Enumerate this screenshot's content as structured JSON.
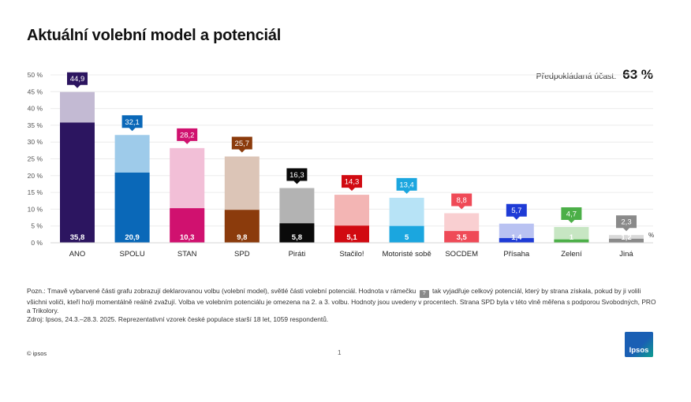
{
  "title": "Aktuální volební model a potenciál",
  "turnout": {
    "label": "Předpokládaná účast:",
    "value": "63 %"
  },
  "chart_data": {
    "type": "bar",
    "title": "Aktuální volební model a potenciál",
    "categories": [
      "ANO",
      "SPOLU",
      "STAN",
      "SPD",
      "Piráti",
      "Stačilo!",
      "Motoristé sobě",
      "SOCDEM",
      "Přísaha",
      "Zelení",
      "Jiná"
    ],
    "series": [
      {
        "values": [
          35.8,
          20.9,
          10.3,
          9.8,
          5.8,
          5.1,
          5,
          3.5,
          1.4,
          1,
          1.2
        ]
      },
      {
        "values": [
          44.9,
          32.1,
          28.2,
          25.7,
          16.3,
          14.3,
          13.4,
          8.8,
          5.7,
          4.7,
          2.3
        ]
      }
    ],
    "value_labels": {
      "model": [
        "35,8",
        "20,9",
        "10,3",
        "9,8",
        "5,8",
        "5,1",
        "5",
        "3,5",
        "1,4",
        "1",
        "1,2"
      ],
      "potential": [
        "44,9",
        "32,1",
        "28,2",
        "25,7",
        "16,3",
        "14,3",
        "13,4",
        "8,8",
        "5,7",
        "4,7",
        "2,3"
      ]
    },
    "colors": {
      "dark": [
        "#2c1560",
        "#0a68b8",
        "#d0116f",
        "#8b3b0c",
        "#0a0a0a",
        "#d10a11",
        "#1ba6df",
        "#ef4a57",
        "#1e3bd6",
        "#4caf48",
        "#8a8a8a"
      ],
      "light": [
        "#c3bad3",
        "#9ecbea",
        "#f2bfd7",
        "#dcc5b7",
        "#b3b3b3",
        "#f3b5b4",
        "#b7e3f6",
        "#f9cfd1",
        "#b9c2f2",
        "#c7e6c3",
        "#d9d9d9"
      ],
      "box": [
        "#2c1560",
        "#0a68b8",
        "#d0116f",
        "#8b3b0c",
        "#0a0a0a",
        "#d10a11",
        "#1ba6df",
        "#ef4a57",
        "#1e3bd6",
        "#4caf48",
        "#8a8a8a"
      ]
    },
    "y_ticks": [
      "0 %",
      "5 %",
      "10 %",
      "15 %",
      "20 %",
      "25 %",
      "30 %",
      "35 %",
      "40 %",
      "45 %",
      "50 %"
    ],
    "ylim": [
      0,
      50
    ],
    "grid": true,
    "pct_marker": "%"
  },
  "note": {
    "text_before_box": "Pozn.: Tmavě vybarvené části grafu zobrazují deklarovanou volbu (volební model), světlé části volební potenciál. Hodnota v rámečku",
    "box_glyph": "?",
    "text_after_box": "tak vyjadřuje celkový potenciál, který by strana získala, pokud by ji volili všichni voliči, kteří ho/ji momentálně reálně zvažují. Volba ve volebním potenciálu je omezena na 2. a 3. volbu. Hodnoty jsou uvedeny v procentech. Strana SPD byla v této vlně měřena s podporou Svobodných, PRO a Trikolory.",
    "source": "Zdroj: Ipsos, 24.3.–28.3. 2025. Reprezentativní vzorek české populace starší 18 let, 1059 respondentů."
  },
  "footer": {
    "copyright": "© ipsos",
    "page_number": "1",
    "logo_text": "Ipsos"
  }
}
